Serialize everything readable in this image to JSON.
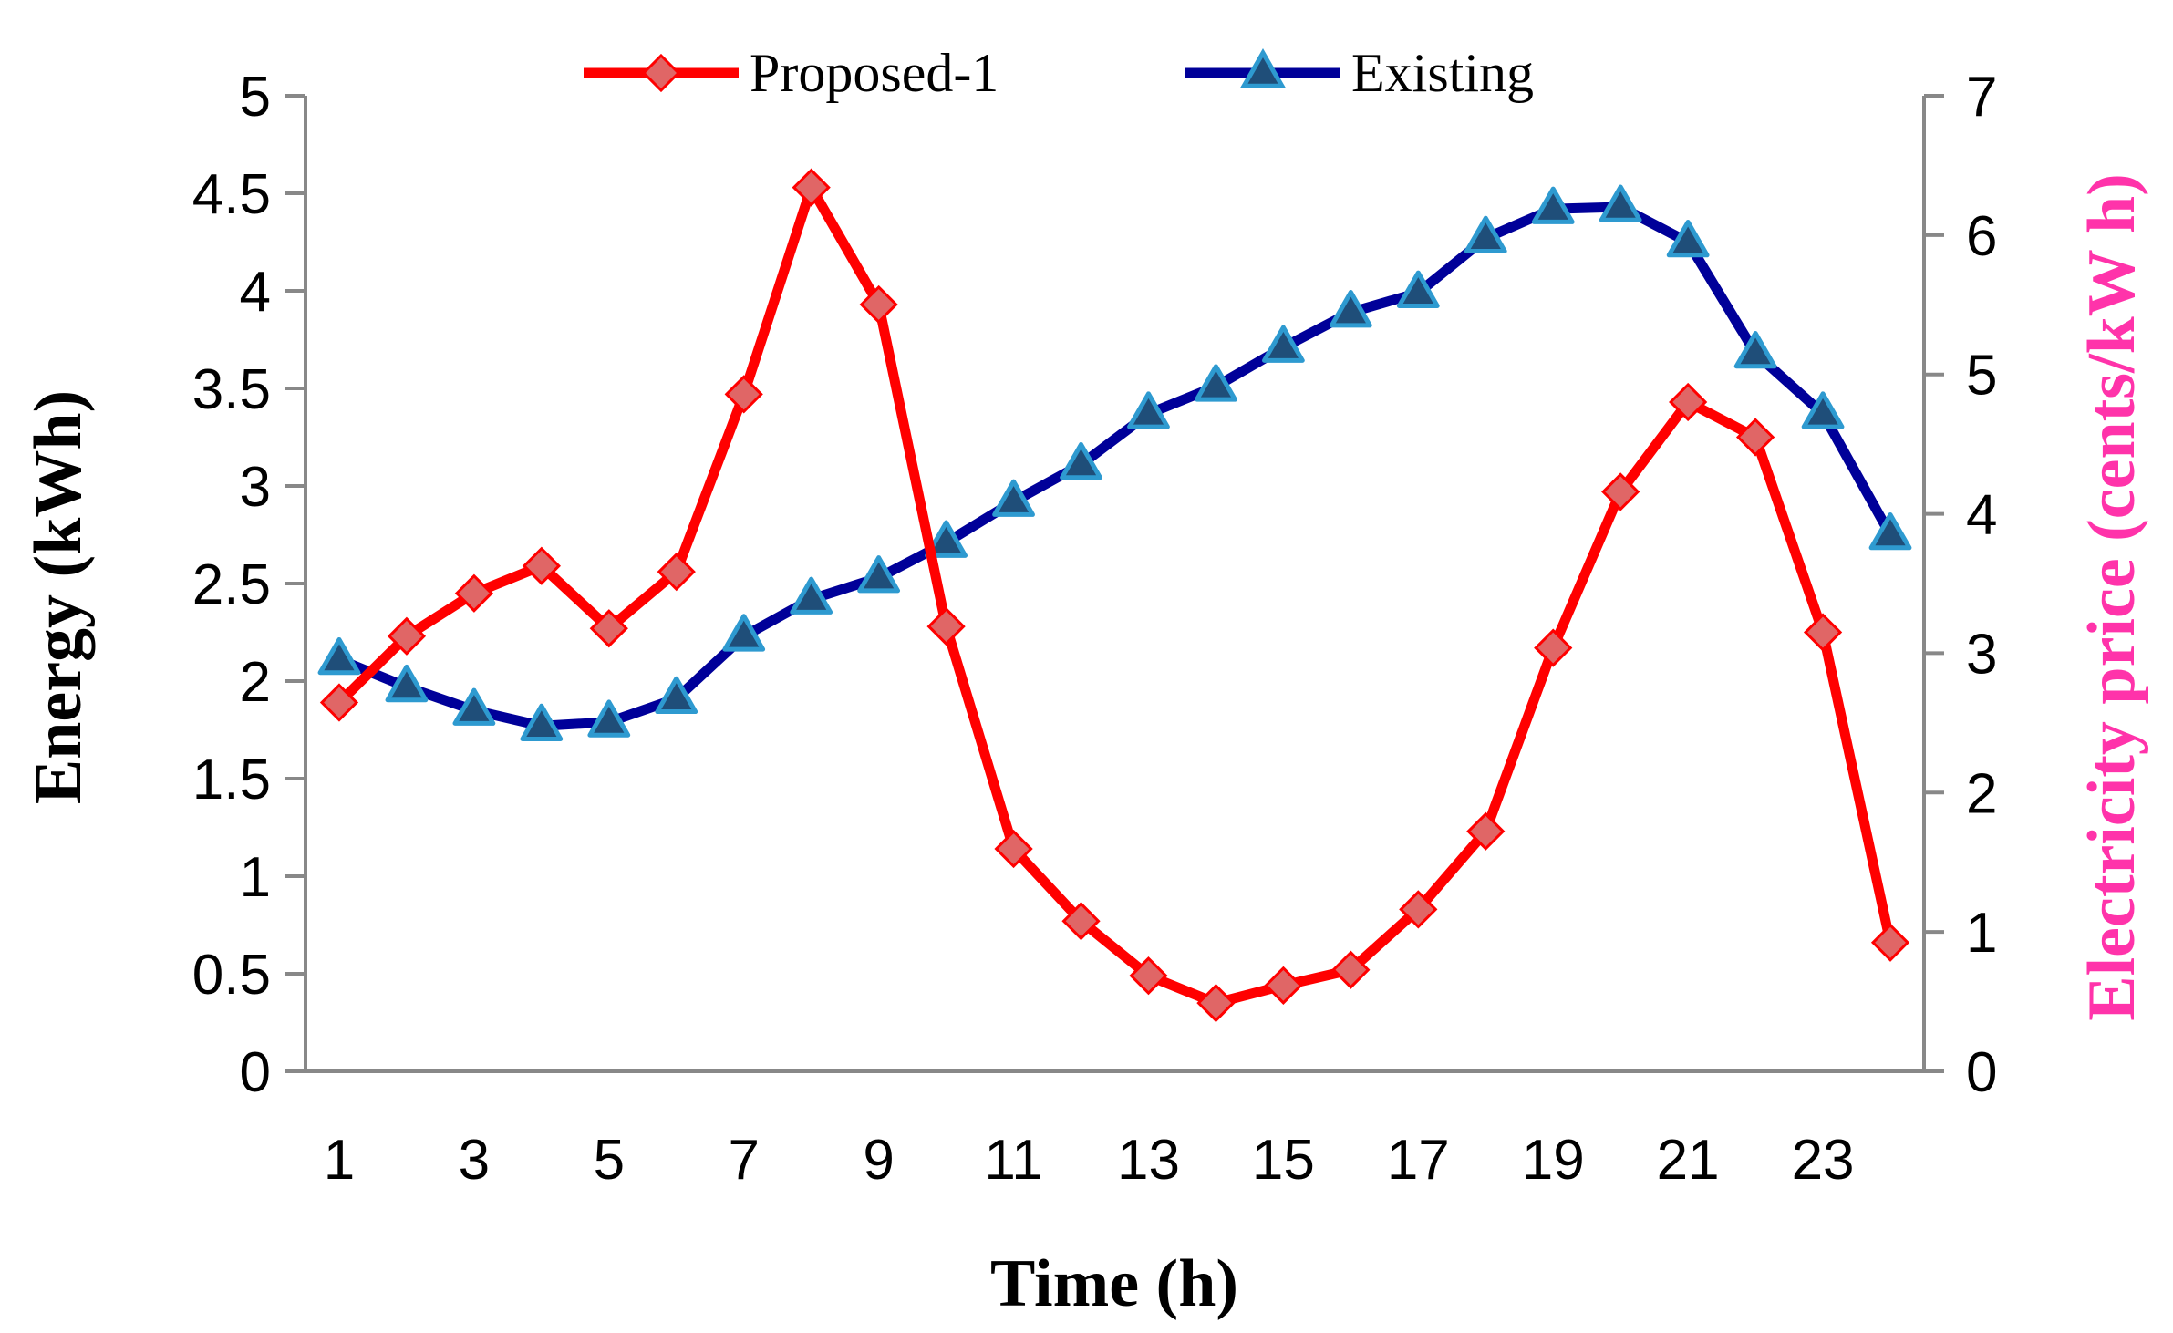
{
  "chart_data": {
    "type": "line",
    "title": "",
    "xlabel": "Time (h)",
    "ylabel": "Energy (kWh)",
    "y2label": "Electricity price (cents/kW h)",
    "x": [
      1,
      2,
      3,
      4,
      5,
      6,
      7,
      8,
      9,
      10,
      11,
      12,
      13,
      14,
      15,
      16,
      17,
      18,
      19,
      20,
      21,
      22,
      23,
      24
    ],
    "x_tick_labels": [
      "1",
      "3",
      "5",
      "7",
      "9",
      "11",
      "13",
      "15",
      "17",
      "19",
      "21",
      "23"
    ],
    "ylim": [
      0,
      5
    ],
    "y_tick_labels": [
      "0",
      "0.5",
      "1",
      "1.5",
      "2",
      "2.5",
      "3",
      "3.5",
      "4",
      "4.5",
      "5"
    ],
    "y2lim": [
      0,
      7
    ],
    "y2_tick_labels": [
      "0",
      "1",
      "2",
      "3",
      "4",
      "5",
      "6",
      "7"
    ],
    "legend_position": "top",
    "grid": false,
    "series": [
      {
        "name": "Proposed-1",
        "color": "#FF0000",
        "marker": "diamond",
        "marker_fill": "#E06666",
        "values": [
          1.89,
          2.23,
          2.45,
          2.59,
          2.27,
          2.56,
          3.47,
          4.53,
          3.93,
          2.28,
          1.14,
          0.77,
          0.49,
          0.35,
          0.44,
          0.52,
          0.83,
          1.23,
          2.17,
          2.97,
          3.43,
          3.25,
          2.25,
          0.66
        ]
      },
      {
        "name": "Existing",
        "color": "#000099",
        "marker": "triangle",
        "marker_fill": "#1F4E79",
        "marker_edge": "#2E9AD0",
        "values": [
          2.11,
          1.97,
          1.85,
          1.77,
          1.79,
          1.91,
          2.23,
          2.42,
          2.53,
          2.71,
          2.92,
          3.11,
          3.37,
          3.51,
          3.71,
          3.89,
          3.99,
          4.27,
          4.42,
          4.43,
          4.25,
          3.68,
          3.37,
          2.75
        ]
      }
    ],
    "colors": {
      "axis": "#888888",
      "y2label": "#FF33AA"
    }
  }
}
